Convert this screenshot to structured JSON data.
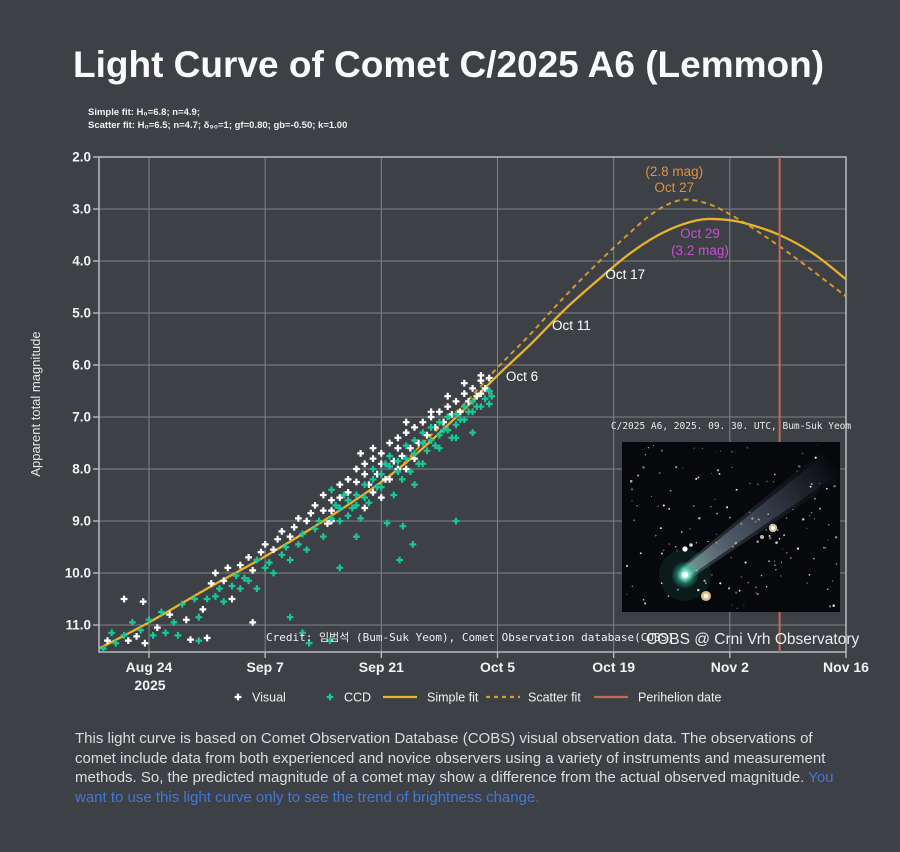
{
  "title": "Light Curve of Comet C/2025 A6 (Lemmon)",
  "fit_info": {
    "line1": "Simple fit: H₀=6.8; n=4.9;",
    "line2": "Scatter fit: H₀=6.5; n=4.7; δ₉₀=1; gf=0.80; gb=-0.50; k=1.00"
  },
  "chart_data": {
    "type": "scatter",
    "ylabel": "Apparent total magnitude",
    "y_axis_inverted": true,
    "ylim": [
      2.0,
      11.5
    ],
    "x_unit": "days since Aug 24 2025",
    "xlim_days": [
      -6,
      84
    ],
    "grid": true,
    "x_ticks": [
      {
        "label": "Aug 24",
        "day": 0,
        "sub": "2025"
      },
      {
        "label": "Sep 7",
        "day": 14
      },
      {
        "label": "Sep 21",
        "day": 28
      },
      {
        "label": "Oct 5",
        "day": 42
      },
      {
        "label": "Oct 19",
        "day": 56
      },
      {
        "label": "Nov 2",
        "day": 70
      },
      {
        "label": "Nov 16",
        "day": 84
      }
    ],
    "y_ticks": [
      2.0,
      3.0,
      4.0,
      5.0,
      6.0,
      7.0,
      8.0,
      9.0,
      10.0,
      11.0
    ],
    "colors": {
      "background": "#3d4045",
      "grid": "#b6babd",
      "visual": "#ffffff",
      "ccd": "#16c79a",
      "simple_fit": "#e6b32a",
      "scatter_fit": "#d19a2a",
      "perihelion": "#c4685a",
      "annotation_orange": "#e0913c",
      "annotation_magenta": "#c94fd4"
    },
    "series": [
      {
        "name": "Visual",
        "marker": "plus",
        "points": [
          [
            -5,
            11.3
          ],
          [
            -3,
            10.5
          ],
          [
            -2.5,
            11.3
          ],
          [
            -1.5,
            11.22
          ],
          [
            -0.7,
            10.55
          ],
          [
            -0.5,
            11.35
          ],
          [
            1,
            11.05
          ],
          [
            2.5,
            10.8
          ],
          [
            4.5,
            10.9
          ],
          [
            5,
            11.28
          ],
          [
            6.5,
            10.7
          ],
          [
            7,
            11.25
          ],
          [
            7.5,
            10.2
          ],
          [
            8,
            10.0
          ],
          [
            9,
            10.15
          ],
          [
            9.5,
            9.9
          ],
          [
            10,
            10.5
          ],
          [
            11,
            9.85
          ],
          [
            12,
            9.7
          ],
          [
            12.5,
            10.95
          ],
          [
            12.5,
            9.95
          ],
          [
            13.5,
            9.6
          ],
          [
            14,
            9.45
          ],
          [
            15,
            9.55
          ],
          [
            15.5,
            9.35
          ],
          [
            16,
            9.2
          ],
          [
            17,
            9.3
          ],
          [
            17.5,
            9.12
          ],
          [
            18,
            8.95
          ],
          [
            19,
            9.0
          ],
          [
            19.5,
            8.85
          ],
          [
            20,
            8.7
          ],
          [
            21,
            8.8
          ],
          [
            21,
            8.5
          ],
          [
            21.5,
            9.05
          ],
          [
            22,
            8.6
          ],
          [
            22,
            8.8
          ],
          [
            22,
            9.0
          ],
          [
            23,
            8.3
          ],
          [
            23,
            8.55
          ],
          [
            24,
            8.2
          ],
          [
            24,
            8.45
          ],
          [
            25,
            8.0
          ],
          [
            25,
            8.25
          ],
          [
            25.5,
            7.7
          ],
          [
            26,
            7.9
          ],
          [
            26,
            8.1
          ],
          [
            26,
            8.75
          ],
          [
            26.5,
            8.3
          ],
          [
            27,
            7.8
          ],
          [
            27,
            8.45
          ],
          [
            27,
            7.6
          ],
          [
            27.5,
            8.1
          ],
          [
            28,
            7.7
          ],
          [
            28,
            7.9
          ],
          [
            28,
            8.55
          ],
          [
            28.5,
            8.2
          ],
          [
            29,
            7.5
          ],
          [
            29,
            8.2
          ],
          [
            29.5,
            7.85
          ],
          [
            30,
            7.4
          ],
          [
            30,
            7.6
          ],
          [
            30,
            8.0
          ],
          [
            30.5,
            7.75
          ],
          [
            31,
            7.3
          ],
          [
            31,
            8.0
          ],
          [
            31,
            7.1
          ],
          [
            31.5,
            7.6
          ],
          [
            32,
            7.2
          ],
          [
            32,
            7.8
          ],
          [
            32.5,
            7.5
          ],
          [
            33,
            7.1
          ],
          [
            33.5,
            7.35
          ],
          [
            34,
            7.0
          ],
          [
            34,
            6.9
          ],
          [
            34.5,
            7.2
          ],
          [
            35,
            6.9
          ],
          [
            35.5,
            7.1
          ],
          [
            36,
            6.8
          ],
          [
            36,
            6.6
          ],
          [
            36.5,
            6.95
          ],
          [
            37,
            6.7
          ],
          [
            37.5,
            6.9
          ],
          [
            38,
            6.55
          ],
          [
            38,
            6.35
          ],
          [
            38.5,
            6.7
          ],
          [
            39,
            6.45
          ],
          [
            39.5,
            6.6
          ],
          [
            40,
            6.3
          ],
          [
            40,
            6.55
          ],
          [
            40,
            6.2
          ],
          [
            40.5,
            6.45
          ],
          [
            41,
            6.25
          ],
          [
            41,
            6.5
          ]
        ]
      },
      {
        "name": "CCD",
        "marker": "plus",
        "points": [
          [
            -5.5,
            11.45
          ],
          [
            -4.5,
            11.15
          ],
          [
            -4,
            11.35
          ],
          [
            -3,
            11.2
          ],
          [
            -2,
            10.95
          ],
          [
            -1,
            11.1
          ],
          [
            0,
            10.9
          ],
          [
            0.5,
            11.2
          ],
          [
            1.5,
            10.75
          ],
          [
            2,
            11.15
          ],
          [
            3,
            10.95
          ],
          [
            3.5,
            11.2
          ],
          [
            4,
            10.6
          ],
          [
            5.5,
            10.5
          ],
          [
            6,
            10.85
          ],
          [
            6,
            11.3
          ],
          [
            7,
            10.5
          ],
          [
            8,
            10.45
          ],
          [
            8.5,
            10.3
          ],
          [
            9,
            10.55
          ],
          [
            10,
            10.25
          ],
          [
            10.5,
            10.05
          ],
          [
            11,
            10.3
          ],
          [
            11.5,
            10.1
          ],
          [
            12,
            10.15
          ],
          [
            13,
            9.75
          ],
          [
            13,
            10.3
          ],
          [
            14,
            9.9
          ],
          [
            14.5,
            9.8
          ],
          [
            15,
            10.0
          ],
          [
            16,
            9.65
          ],
          [
            16.5,
            9.5
          ],
          [
            17,
            9.75
          ],
          [
            17,
            10.85
          ],
          [
            18,
            9.45
          ],
          [
            18.5,
            9.25
          ],
          [
            18.5,
            11.15
          ],
          [
            19,
            9.55
          ],
          [
            19.3,
            11.35
          ],
          [
            20,
            9.15
          ],
          [
            20.5,
            9.0
          ],
          [
            21,
            9.3
          ],
          [
            21.8,
            11.3
          ],
          [
            22,
            8.4
          ],
          [
            22,
            8.95
          ],
          [
            22.5,
            8.7
          ],
          [
            23,
            8.75
          ],
          [
            23,
            9.0
          ],
          [
            23,
            9.9
          ],
          [
            23.5,
            8.5
          ],
          [
            24,
            8.6
          ],
          [
            24,
            8.9
          ],
          [
            24.5,
            8.75
          ],
          [
            25,
            8.5
          ],
          [
            25,
            8.7
          ],
          [
            25,
            9.3
          ],
          [
            25.5,
            8.95
          ],
          [
            26,
            8.3
          ],
          [
            26,
            8.55
          ],
          [
            26.5,
            8.65
          ],
          [
            27,
            8.0
          ],
          [
            27,
            8.2
          ],
          [
            27.5,
            8.35
          ],
          [
            28,
            8.1
          ],
          [
            28,
            8.35
          ],
          [
            28.5,
            7.9
          ],
          [
            28.7,
            9.04
          ],
          [
            29,
            7.75
          ],
          [
            29,
            7.95
          ],
          [
            29.5,
            8.5
          ],
          [
            30,
            7.85
          ],
          [
            30,
            8.05
          ],
          [
            30.2,
            9.75
          ],
          [
            30.5,
            8.2
          ],
          [
            30.6,
            9.1
          ],
          [
            31,
            7.55
          ],
          [
            31,
            7.8
          ],
          [
            31.5,
            8.05
          ],
          [
            31.8,
            9.45
          ],
          [
            32,
            7.45
          ],
          [
            32,
            7.7
          ],
          [
            32,
            8.3
          ],
          [
            32.5,
            7.9
          ],
          [
            33,
            7.3
          ],
          [
            33,
            7.5
          ],
          [
            33,
            7.9
          ],
          [
            33.5,
            7.65
          ],
          [
            34,
            7.2
          ],
          [
            34,
            7.45
          ],
          [
            34.5,
            7.55
          ],
          [
            35,
            7.1
          ],
          [
            35,
            7.35
          ],
          [
            35,
            7.6
          ],
          [
            35.5,
            7.25
          ],
          [
            36,
            7.0
          ],
          [
            36,
            7.25
          ],
          [
            36.5,
            7.4
          ],
          [
            37,
            6.95
          ],
          [
            37,
            7.15
          ],
          [
            37,
            7.4
          ],
          [
            37,
            9.0
          ],
          [
            37.5,
            7.05
          ],
          [
            38,
            6.8
          ],
          [
            38,
            7.05
          ],
          [
            38.5,
            6.9
          ],
          [
            39,
            6.7
          ],
          [
            39,
            6.9
          ],
          [
            39,
            7.3
          ],
          [
            39.5,
            6.8
          ],
          [
            40,
            6.8
          ],
          [
            40.5,
            6.65
          ],
          [
            41,
            6.5
          ],
          [
            41,
            6.75
          ],
          [
            41.3,
            6.6
          ]
        ]
      },
      {
        "name": "Simple fit",
        "style": "solid-line",
        "points": [
          [
            -6,
            11.45
          ],
          [
            0,
            10.95
          ],
          [
            7,
            10.3
          ],
          [
            14,
            9.68
          ],
          [
            21,
            9.0
          ],
          [
            28,
            8.25
          ],
          [
            33,
            7.6
          ],
          [
            38,
            6.85
          ],
          [
            42,
            6.2
          ],
          [
            46,
            5.6
          ],
          [
            50,
            4.95
          ],
          [
            54,
            4.38
          ],
          [
            58,
            3.85
          ],
          [
            62,
            3.45
          ],
          [
            66,
            3.22
          ],
          [
            69,
            3.2
          ],
          [
            72,
            3.28
          ],
          [
            76,
            3.5
          ],
          [
            80,
            3.85
          ],
          [
            84,
            4.35
          ]
        ]
      },
      {
        "name": "Scatter fit",
        "style": "dashed-line",
        "points": [
          [
            30,
            8.02
          ],
          [
            33,
            7.5
          ],
          [
            38,
            6.75
          ],
          [
            42,
            6.05
          ],
          [
            46,
            5.4
          ],
          [
            50,
            4.7
          ],
          [
            54,
            4.05
          ],
          [
            58,
            3.45
          ],
          [
            61,
            3.05
          ],
          [
            64,
            2.83
          ],
          [
            67,
            2.88
          ],
          [
            70,
            3.1
          ],
          [
            74,
            3.5
          ],
          [
            78,
            3.95
          ],
          [
            84,
            4.68
          ]
        ]
      },
      {
        "name": "Perihelion date",
        "style": "vline",
        "day": 76
      }
    ],
    "annotations": [
      {
        "text": "Oct 6",
        "day": 44.95,
        "mag": 6.23,
        "color": "#ffffff"
      },
      {
        "text": "Oct 11",
        "day": 50.9,
        "mag": 5.25,
        "color": "#ffffff"
      },
      {
        "text": "Oct 17",
        "day": 57.4,
        "mag": 4.27,
        "color": "#ffffff"
      },
      {
        "text": "(2.8 mag)",
        "day": 63.3,
        "mag": 2.29,
        "color": "#e0913c"
      },
      {
        "text": "Oct 27",
        "day": 63.3,
        "mag": 2.6,
        "color": "#e0913c"
      },
      {
        "text": "Oct 29",
        "day": 66.4,
        "mag": 3.48,
        "color": "#c94fd4"
      },
      {
        "text": "(3.2 mag)",
        "day": 66.4,
        "mag": 3.81,
        "color": "#c94fd4"
      }
    ],
    "credit": "Credit: 임범석 (Bum-Suk Yeom), Comet Observation database(COBS)",
    "watermark": "COBS @ Crni Vrh Observatory",
    "legend": [
      {
        "label": "Visual",
        "type": "plus",
        "color": "#ffffff"
      },
      {
        "label": "CCD",
        "type": "plus",
        "color": "#16c79a"
      },
      {
        "label": "Simple fit",
        "type": "line",
        "color": "#e6b32a"
      },
      {
        "label": "Scatter fit",
        "type": "dash",
        "color": "#d19a2a"
      },
      {
        "label": "Perihelion date",
        "type": "line",
        "color": "#c4685a"
      }
    ]
  },
  "inset": {
    "caption": "C/2025 A6, 2025. 09. 30. UTC, Bum-Suk Yeom"
  },
  "footnote": {
    "main": "This light curve is based on Comet Observation Database (COBS) visual observation data. The observations of comet include data from both experienced and novice observers using a variety of instruments and measurement methods. So, the predicted magnitude of a comet may show a difference from the actual observed magnitude. ",
    "highlight": "You want to use this light curve only to see the trend of brightness change."
  }
}
